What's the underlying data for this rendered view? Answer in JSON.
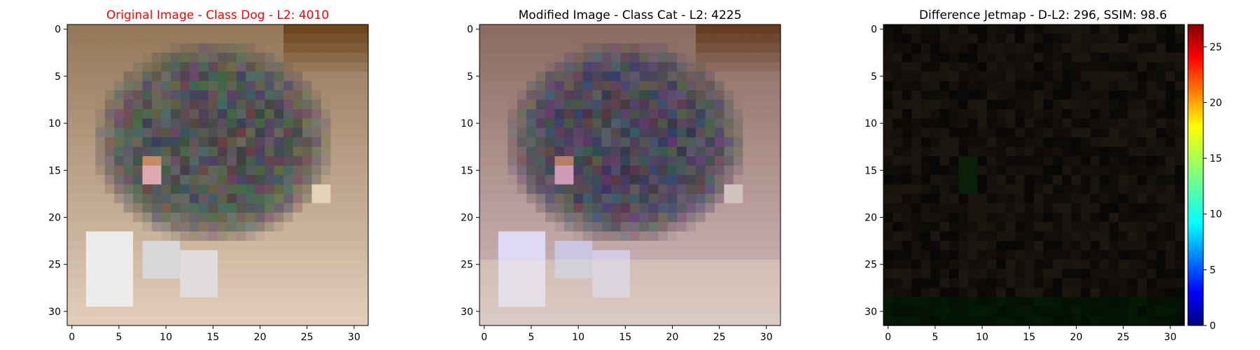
{
  "figure": {
    "panels": [
      {
        "title": "Original Image - Class Dog - L2: 4010",
        "title_color": "#ff0000",
        "kind": "image",
        "palette": "original"
      },
      {
        "title": "Modified Image - Class Cat - L2: 4225",
        "title_color": "#000000",
        "kind": "image",
        "palette": "modified"
      },
      {
        "title": "Difference Jetmap - D-L2: 296, SSIM: 98.6",
        "title_color": "#000000",
        "kind": "diff",
        "palette": "diff"
      }
    ]
  },
  "chart_data": [
    {
      "type": "heatmap",
      "title": "Original Image - Class Dog - L2: 4010",
      "xlim": [
        -0.5,
        31.5
      ],
      "ylim": [
        31.5,
        -0.5
      ],
      "x_ticks": [
        0,
        5,
        10,
        15,
        20,
        25,
        30
      ],
      "y_ticks": [
        0,
        5,
        10,
        15,
        20,
        25,
        30
      ],
      "image_size": [
        32,
        32
      ],
      "grid": false
    },
    {
      "type": "heatmap",
      "title": "Modified Image - Class Cat - L2: 4225",
      "xlim": [
        -0.5,
        31.5
      ],
      "ylim": [
        31.5,
        -0.5
      ],
      "x_ticks": [
        0,
        5,
        10,
        15,
        20,
        25,
        30
      ],
      "y_ticks": [
        0,
        5,
        10,
        15,
        20,
        25,
        30
      ],
      "image_size": [
        32,
        32
      ],
      "grid": false
    },
    {
      "type": "heatmap",
      "title": "Difference Jetmap - D-L2: 296, SSIM: 98.6",
      "xlim": [
        -0.5,
        31.5
      ],
      "ylim": [
        31.5,
        -0.5
      ],
      "x_ticks": [
        0,
        5,
        10,
        15,
        20,
        25,
        30
      ],
      "y_ticks": [
        0,
        5,
        10,
        15,
        20,
        25,
        30
      ],
      "image_size": [
        32,
        32
      ],
      "grid": false,
      "colorbar": {
        "colormap": "jet",
        "range": [
          0,
          27
        ],
        "ticks": [
          0,
          5,
          10,
          15,
          20,
          25
        ]
      }
    }
  ]
}
